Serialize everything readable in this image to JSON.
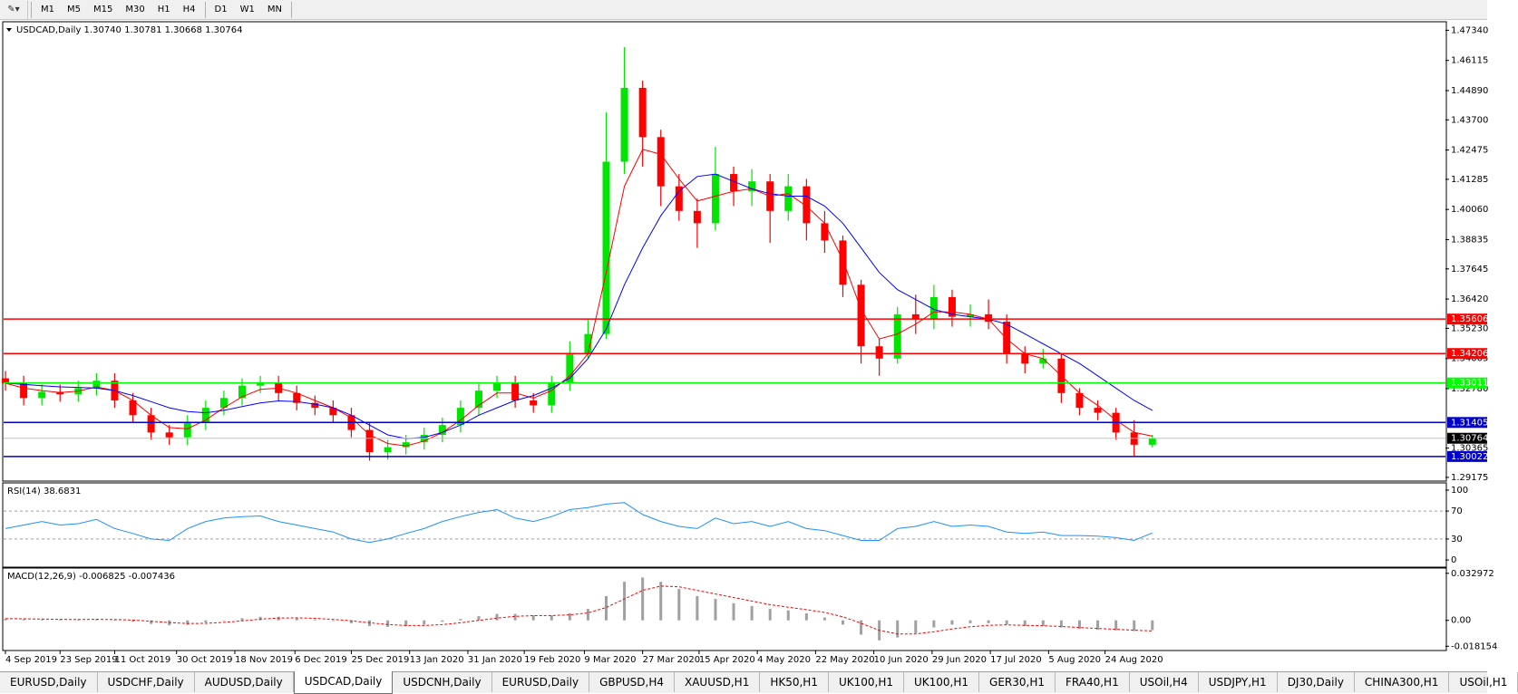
{
  "toolbar": {
    "timeframe_groups": [
      [
        "M1",
        "M5",
        "M15",
        "M30",
        "H1",
        "H4"
      ],
      [
        "D1",
        "W1",
        "MN"
      ]
    ]
  },
  "chart_data": [
    {
      "type": "candlestick",
      "title": "USDCAD,Daily  1.30740 1.30781 1.30668 1.30764",
      "open": [
        1.332,
        1.33,
        1.324,
        1.3265,
        1.3255,
        1.328,
        1.331,
        1.323,
        1.317,
        1.31,
        1.308,
        1.314,
        1.32,
        1.324,
        1.329,
        1.33,
        1.326,
        1.322,
        1.32,
        1.317,
        1.311,
        1.302,
        1.304,
        1.306,
        1.309,
        1.313,
        1.32,
        1.327,
        1.33,
        1.323,
        1.321,
        1.33,
        1.342,
        1.35,
        1.42,
        1.45,
        1.43,
        1.41,
        1.4,
        1.395,
        1.415,
        1.408,
        1.412,
        1.4,
        1.41,
        1.395,
        1.388,
        1.37,
        1.345,
        1.34,
        1.358,
        1.356,
        1.365,
        1.357,
        1.358,
        1.355,
        1.342,
        1.338,
        1.34,
        1.326,
        1.32,
        1.318,
        1.31,
        1.305
      ],
      "high": [
        1.335,
        1.333,
        1.3295,
        1.3295,
        1.331,
        1.334,
        1.334,
        1.326,
        1.32,
        1.313,
        1.317,
        1.323,
        1.327,
        1.332,
        1.333,
        1.333,
        1.329,
        1.325,
        1.323,
        1.32,
        1.314,
        1.307,
        1.309,
        1.312,
        1.316,
        1.323,
        1.33,
        1.333,
        1.333,
        1.326,
        1.333,
        1.347,
        1.356,
        1.44,
        1.4665,
        1.453,
        1.433,
        1.415,
        1.405,
        1.426,
        1.418,
        1.417,
        1.415,
        1.415,
        1.413,
        1.4,
        1.39,
        1.372,
        1.348,
        1.361,
        1.366,
        1.37,
        1.368,
        1.362,
        1.364,
        1.358,
        1.345,
        1.344,
        1.342,
        1.328,
        1.323,
        1.32,
        1.315,
        1.309
      ],
      "low": [
        1.327,
        1.321,
        1.321,
        1.3225,
        1.3225,
        1.325,
        1.32,
        1.314,
        1.307,
        1.305,
        1.305,
        1.311,
        1.317,
        1.321,
        1.326,
        1.323,
        1.319,
        1.317,
        1.314,
        1.308,
        1.2985,
        1.299,
        1.301,
        1.303,
        1.306,
        1.31,
        1.317,
        1.324,
        1.32,
        1.318,
        1.318,
        1.327,
        1.34,
        1.348,
        1.415,
        1.418,
        1.402,
        1.396,
        1.385,
        1.392,
        1.402,
        1.402,
        1.387,
        1.396,
        1.388,
        1.383,
        1.365,
        1.338,
        1.333,
        1.338,
        1.35,
        1.352,
        1.353,
        1.353,
        1.352,
        1.338,
        1.334,
        1.336,
        1.322,
        1.317,
        1.315,
        1.307,
        1.3,
        1.304
      ],
      "close": [
        1.33,
        1.324,
        1.3265,
        1.3255,
        1.328,
        1.331,
        1.323,
        1.317,
        1.31,
        1.308,
        1.314,
        1.32,
        1.324,
        1.329,
        1.33,
        1.326,
        1.322,
        1.32,
        1.317,
        1.311,
        1.302,
        1.304,
        1.306,
        1.309,
        1.313,
        1.32,
        1.327,
        1.33,
        1.323,
        1.321,
        1.33,
        1.342,
        1.35,
        1.42,
        1.45,
        1.43,
        1.41,
        1.4,
        1.395,
        1.415,
        1.408,
        1.412,
        1.4,
        1.41,
        1.395,
        1.388,
        1.37,
        1.345,
        1.34,
        1.358,
        1.356,
        1.365,
        1.357,
        1.358,
        1.355,
        1.342,
        1.338,
        1.34,
        1.326,
        1.32,
        1.318,
        1.31,
        1.305,
        1.3076
      ],
      "up_color": "#00e600",
      "down_color": "#ff0000",
      "overlays": [
        {
          "color": "#ff0000",
          "values": [
            1.33,
            1.328,
            1.327,
            1.3262,
            1.3268,
            1.3285,
            1.327,
            1.323,
            1.317,
            1.312,
            1.3115,
            1.315,
            1.32,
            1.3245,
            1.3275,
            1.328,
            1.326,
            1.323,
            1.32,
            1.316,
            1.309,
            1.3055,
            1.3045,
            1.3065,
            1.31,
            1.315,
            1.321,
            1.326,
            1.326,
            1.324,
            1.327,
            1.333,
            1.342,
            1.375,
            1.41,
            1.425,
            1.423,
            1.413,
            1.404,
            1.406,
            1.408,
            1.409,
            1.406,
            1.407,
            1.402,
            1.395,
            1.38,
            1.36,
            1.348,
            1.35,
            1.354,
            1.359,
            1.359,
            1.358,
            1.356,
            1.348,
            1.342,
            1.34,
            1.333,
            1.326,
            1.321,
            1.315,
            1.31,
            1.3085
          ]
        },
        {
          "color": "#0000ff",
          "values": [
            1.33,
            1.3295,
            1.329,
            1.3285,
            1.3283,
            1.328,
            1.327,
            1.325,
            1.3225,
            1.32,
            1.3185,
            1.318,
            1.319,
            1.3205,
            1.322,
            1.3228,
            1.3225,
            1.3215,
            1.32,
            1.317,
            1.313,
            1.309,
            1.3075,
            1.308,
            1.31,
            1.313,
            1.317,
            1.32,
            1.323,
            1.325,
            1.328,
            1.332,
            1.34,
            1.352,
            1.37,
            1.385,
            1.398,
            1.408,
            1.414,
            1.415,
            1.412,
            1.409,
            1.407,
            1.406,
            1.406,
            1.402,
            1.395,
            1.385,
            1.375,
            1.368,
            1.364,
            1.36,
            1.358,
            1.357,
            1.356,
            1.354,
            1.35,
            1.346,
            1.342,
            1.338,
            1.333,
            1.328,
            1.323,
            1.319
          ]
        }
      ],
      "levels": [
        {
          "value": 1.35606,
          "color": "#ff0000"
        },
        {
          "value": 1.34206,
          "color": "#ff0000"
        },
        {
          "value": 1.33011,
          "color": "#00ff00"
        },
        {
          "value": 1.31405,
          "color": "#0000cc"
        },
        {
          "value": 1.30022,
          "color": "#0000cc"
        }
      ],
      "last_price": {
        "value": 1.30764,
        "color": "#000000",
        "line_color": "#c0c0c0"
      },
      "ylim": [
        1.2906,
        1.4765
      ],
      "yticks": [
        {
          "value": 1.4734,
          "label": "1.47340"
        },
        1.46115,
        {
          "value": 1.4489,
          "label": "1.44890"
        },
        {
          "value": 1.437,
          "label": "1.43700"
        },
        1.42475,
        1.41285,
        {
          "value": 1.4006,
          "label": "1.40060"
        },
        1.38835,
        1.37645,
        {
          "value": 1.3642,
          "label": "1.36420"
        },
        {
          "value": 1.3523,
          "label": "1.35230"
        },
        1.34005,
        {
          "value": 1.3278,
          "label": "1.32780"
        },
        1.30365,
        1.29175
      ],
      "xlim": [
        -0.1,
        79.1
      ],
      "xticks": [
        {
          "value": 0,
          "label": "4 Sep 2019"
        },
        {
          "value": 3.0,
          "label": "23 Sep 2019"
        },
        {
          "value": 6.0,
          "label": "11 Oct 2019"
        },
        {
          "value": 9.4,
          "label": "30 Oct 2019"
        },
        {
          "value": 12.6,
          "label": "18 Nov 2019"
        },
        {
          "value": 15.9,
          "label": "6 Dec 2019"
        },
        {
          "value": 19.0,
          "label": "25 Dec 2019"
        },
        {
          "value": 22.2,
          "label": "13 Jan 2020"
        },
        {
          "value": 25.4,
          "label": "31 Jan 2020"
        },
        {
          "value": 28.5,
          "label": "19 Feb 2020"
        },
        {
          "value": 31.8,
          "label": "9 Mar 2020"
        },
        {
          "value": 35.0,
          "label": "27 Mar 2020"
        },
        {
          "value": 38.1,
          "label": "15 Apr 2020"
        },
        {
          "value": 41.3,
          "label": "4 May 2020"
        },
        {
          "value": 44.5,
          "label": "22 May 2020"
        },
        {
          "value": 47.7,
          "label": "10 Jun 2020"
        },
        {
          "value": 50.9,
          "label": "29 Jun 2020"
        },
        {
          "value": 54.1,
          "label": "17 Jul 2020"
        },
        {
          "value": 57.3,
          "label": "5 Aug 2020"
        },
        {
          "value": 60.4,
          "label": "24 Aug 2020"
        }
      ]
    },
    {
      "type": "line",
      "title": "RSI(14) 38.6831",
      "series": [
        {
          "color": "#1e90ff",
          "values": [
            45,
            50,
            55,
            50,
            52,
            58,
            45,
            38,
            30,
            28,
            45,
            55,
            60,
            62,
            63,
            55,
            50,
            45,
            40,
            30,
            25,
            30,
            38,
            45,
            55,
            62,
            68,
            72,
            60,
            55,
            62,
            72,
            75,
            80,
            82,
            65,
            55,
            48,
            45,
            60,
            52,
            55,
            48,
            55,
            45,
            42,
            35,
            28,
            28,
            45,
            48,
            55,
            48,
            50,
            48,
            40,
            38,
            40,
            35,
            35,
            34,
            32,
            28,
            38.6831
          ]
        }
      ],
      "levels": [
        70,
        30
      ],
      "ylim": [
        -9,
        109
      ],
      "yticks": [
        100,
        70,
        30,
        0
      ]
    },
    {
      "type": "macd",
      "title": "MACD(12,26,9) -0.006825 -0.007436",
      "series": [
        {
          "type": "bar",
          "color": "#a0a0a0",
          "values": [
            0.001,
            0.0008,
            0.0006,
            0.0005,
            0.0006,
            0.0008,
            0.0004,
            -0.001,
            -0.0025,
            -0.0035,
            -0.003,
            -0.0015,
            0.0,
            0.0015,
            0.0025,
            0.0025,
            0.0015,
            0.0005,
            -0.0005,
            -0.002,
            -0.004,
            -0.0045,
            -0.004,
            -0.003,
            -0.001,
            0.001,
            0.003,
            0.0045,
            0.0045,
            0.0035,
            0.0035,
            0.005,
            0.008,
            0.017,
            0.027,
            0.03,
            0.027,
            0.022,
            0.017,
            0.015,
            0.012,
            0.01,
            0.008,
            0.007,
            0.005,
            0.002,
            -0.003,
            -0.01,
            -0.014,
            -0.012,
            -0.009,
            -0.005,
            -0.003,
            -0.002,
            -0.002,
            -0.003,
            -0.004,
            -0.004,
            -0.005,
            -0.006,
            -0.0065,
            -0.007,
            -0.0075,
            -0.006825
          ]
        },
        {
          "type": "line",
          "color": "#ff0000",
          "dashed": true,
          "values": [
            0.0012,
            0.0011,
            0.0009,
            0.0007,
            0.0006,
            0.0007,
            0.0006,
            0.0002,
            -0.0006,
            -0.0016,
            -0.0022,
            -0.0021,
            -0.0014,
            -0.0004,
            0.0008,
            0.0016,
            0.0018,
            0.0014,
            0.0007,
            -0.0003,
            -0.0017,
            -0.0029,
            -0.0036,
            -0.0036,
            -0.003,
            -0.0017,
            0.0,
            0.0016,
            0.0028,
            0.0033,
            0.0034,
            0.0039,
            0.0052,
            0.009,
            0.015,
            0.021,
            0.024,
            0.0235,
            0.021,
            0.0185,
            0.016,
            0.0135,
            0.011,
            0.0092,
            0.0075,
            0.0055,
            0.0025,
            -0.002,
            -0.007,
            -0.0095,
            -0.0095,
            -0.008,
            -0.006,
            -0.0045,
            -0.0035,
            -0.0032,
            -0.0035,
            -0.0038,
            -0.0043,
            -0.005,
            -0.0057,
            -0.0063,
            -0.0069,
            -0.007436
          ]
        }
      ],
      "ylim": [
        -0.0205,
        0.036
      ],
      "yticks": [
        0.032972,
        {
          "value": 0,
          "label": "0.00"
        },
        -0.018154
      ]
    }
  ],
  "tabs": [
    "EURUSD,Daily",
    "USDCHF,Daily",
    "AUDUSD,Daily",
    "USDCAD,Daily",
    "USDCNH,Daily",
    "EURUSD,Daily",
    "GBPUSD,H4",
    "XAUUSD,H1",
    "HK50,H1",
    "UK100,H1",
    "UK100,H1",
    "GER30,H1",
    "FRA40,H1",
    "USOil,H4",
    "USDJPY,H1",
    "DJ30,Daily",
    "CHINA300,H1",
    "USOil,H1"
  ],
  "active_tab": 3
}
